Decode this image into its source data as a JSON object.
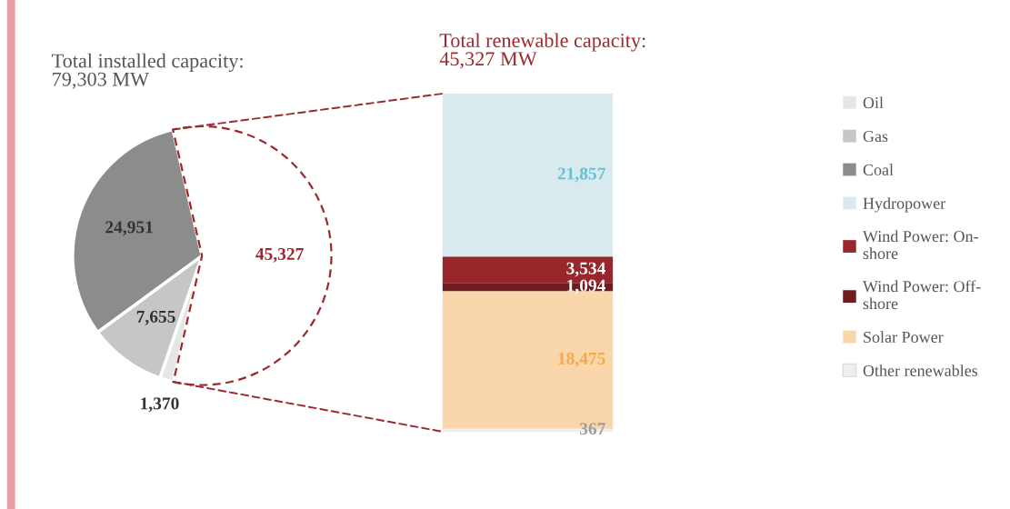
{
  "chart_data": [
    {
      "type": "pie",
      "title": "Total installed capacity:\n79,303 MW",
      "categories": [
        "Oil",
        "Gas",
        "Coal",
        null
      ],
      "values": [
        1370,
        7655,
        24951,
        45327
      ],
      "value_labels": [
        "1,370",
        "7,655",
        "24,951",
        "45,327"
      ],
      "colors": [
        "#e6e6e6",
        "#c6c6c6",
        "#8c8c8c",
        "#ffffff"
      ],
      "legend": "right"
    },
    {
      "type": "bar",
      "title": "Total renewable capacity:\n45,327 MW",
      "stacked": true,
      "categories": [
        null
      ],
      "legend": "right",
      "series": [
        {
          "name": "Other renewables",
          "color": "#eeeeee",
          "values": [
            367
          ],
          "value_labels": [
            "367"
          ]
        },
        {
          "name": "Solar Power",
          "color": "#f9d7aa",
          "values": [
            18475
          ],
          "value_labels": [
            "18,475"
          ]
        },
        {
          "name": "Wind Power: Off-shore",
          "color": "#6e1c1f",
          "values": [
            1094
          ],
          "value_labels": [
            "1,094"
          ]
        },
        {
          "name": "Wind Power: On-shore",
          "color": "#98262b",
          "values": [
            3534
          ],
          "value_labels": [
            "3,534"
          ]
        },
        {
          "name": "Hydropower",
          "color": "#d8eaee",
          "values": [
            21857
          ],
          "value_labels": [
            "21,857"
          ]
        }
      ]
    }
  ]
}
